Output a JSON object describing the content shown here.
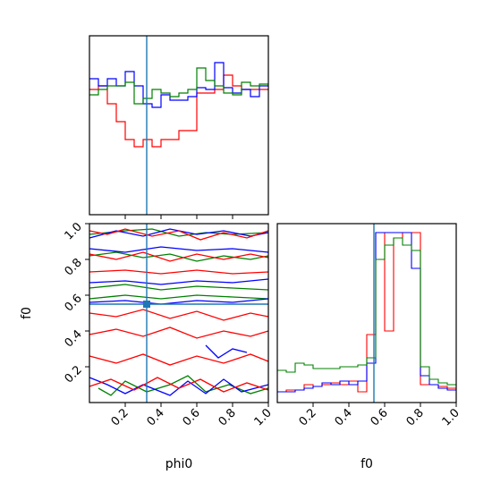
{
  "chart_data": [
    {
      "type": "histogram",
      "panel": "phi0-marginal",
      "xlim": [
        0,
        1
      ],
      "truth": 0.32,
      "truth_color": "#1f77b4",
      "bins": 20,
      "series": [
        {
          "color": "#ff0000",
          "values": [
            0.7,
            0.72,
            0.62,
            0.52,
            0.42,
            0.38,
            0.42,
            0.38,
            0.42,
            0.42,
            0.47,
            0.47,
            0.68,
            0.68,
            0.7,
            0.78,
            0.72,
            0.7,
            0.7,
            0.7
          ]
        },
        {
          "color": "#0000ff",
          "values": [
            0.76,
            0.72,
            0.76,
            0.72,
            0.8,
            0.72,
            0.62,
            0.6,
            0.67,
            0.64,
            0.64,
            0.66,
            0.71,
            0.7,
            0.85,
            0.71,
            0.68,
            0.7,
            0.66,
            0.72
          ]
        },
        {
          "color": "#008000",
          "values": [
            0.67,
            0.7,
            0.72,
            0.72,
            0.74,
            0.62,
            0.65,
            0.7,
            0.68,
            0.66,
            0.68,
            0.7,
            0.82,
            0.75,
            0.72,
            0.68,
            0.67,
            0.74,
            0.72,
            0.73
          ]
        }
      ]
    },
    {
      "type": "contour",
      "panel": "phi0-f0-joint",
      "xlabel": "phi0",
      "ylabel": "f0",
      "xlim": [
        0,
        1
      ],
      "ylim": [
        0,
        1
      ],
      "xticks": [
        "0.2",
        "0.4",
        "0.6",
        "0.8",
        "1.0"
      ],
      "yticks": [
        "0.2",
        "0.4",
        "0.6",
        "0.8",
        "1.0"
      ],
      "truth": {
        "x": 0.32,
        "y": 0.55
      },
      "truth_color": "#1f77b4",
      "series": [
        {
          "color": "#008000",
          "contours": [
            [
              [
                0.0,
                0.94
              ],
              [
                0.1,
                0.95
              ],
              [
                0.2,
                0.96
              ],
              [
                0.35,
                0.97
              ],
              [
                0.5,
                0.93
              ],
              [
                0.65,
                0.95
              ],
              [
                0.8,
                0.94
              ],
              [
                1.0,
                0.95
              ]
            ],
            [
              [
                0.0,
                0.82
              ],
              [
                0.15,
                0.84
              ],
              [
                0.3,
                0.81
              ],
              [
                0.45,
                0.83
              ],
              [
                0.6,
                0.79
              ],
              [
                0.75,
                0.82
              ],
              [
                0.9,
                0.8
              ],
              [
                1.0,
                0.82
              ]
            ],
            [
              [
                0.0,
                0.64
              ],
              [
                0.2,
                0.66
              ],
              [
                0.4,
                0.63
              ],
              [
                0.6,
                0.65
              ],
              [
                0.8,
                0.64
              ],
              [
                1.0,
                0.63
              ]
            ],
            [
              [
                0.0,
                0.58
              ],
              [
                0.2,
                0.6
              ],
              [
                0.4,
                0.58
              ],
              [
                0.6,
                0.6
              ],
              [
                0.8,
                0.59
              ],
              [
                1.0,
                0.58
              ]
            ],
            [
              [
                0.05,
                0.08
              ],
              [
                0.12,
                0.04
              ],
              [
                0.2,
                0.12
              ],
              [
                0.32,
                0.06
              ],
              [
                0.45,
                0.1
              ],
              [
                0.55,
                0.15
              ],
              [
                0.65,
                0.06
              ],
              [
                0.78,
                0.1
              ],
              [
                0.9,
                0.05
              ],
              [
                1.0,
                0.08
              ]
            ]
          ]
        },
        {
          "color": "#0000ff",
          "contours": [
            [
              [
                0.0,
                0.92
              ],
              [
                0.15,
                0.96
              ],
              [
                0.3,
                0.93
              ],
              [
                0.45,
                0.97
              ],
              [
                0.6,
                0.94
              ],
              [
                0.75,
                0.96
              ],
              [
                0.9,
                0.93
              ],
              [
                1.0,
                0.95
              ]
            ],
            [
              [
                0.0,
                0.86
              ],
              [
                0.2,
                0.84
              ],
              [
                0.4,
                0.87
              ],
              [
                0.6,
                0.85
              ],
              [
                0.8,
                0.86
              ],
              [
                1.0,
                0.84
              ]
            ],
            [
              [
                0.0,
                0.67
              ],
              [
                0.2,
                0.68
              ],
              [
                0.4,
                0.66
              ],
              [
                0.6,
                0.68
              ],
              [
                0.8,
                0.67
              ],
              [
                1.0,
                0.69
              ]
            ],
            [
              [
                0.0,
                0.56
              ],
              [
                0.2,
                0.57
              ],
              [
                0.4,
                0.55
              ],
              [
                0.6,
                0.57
              ],
              [
                0.8,
                0.56
              ],
              [
                1.0,
                0.58
              ]
            ],
            [
              [
                0.0,
                0.14
              ],
              [
                0.1,
                0.1
              ],
              [
                0.2,
                0.05
              ],
              [
                0.3,
                0.1
              ],
              [
                0.45,
                0.04
              ],
              [
                0.55,
                0.12
              ],
              [
                0.65,
                0.05
              ],
              [
                0.75,
                0.13
              ],
              [
                0.85,
                0.06
              ],
              [
                1.0,
                0.1
              ]
            ],
            [
              [
                0.65,
                0.32
              ],
              [
                0.72,
                0.25
              ],
              [
                0.8,
                0.3
              ],
              [
                0.88,
                0.28
              ]
            ]
          ]
        },
        {
          "color": "#ff0000",
          "contours": [
            [
              [
                0.0,
                0.96
              ],
              [
                0.1,
                0.94
              ],
              [
                0.2,
                0.97
              ],
              [
                0.35,
                0.93
              ],
              [
                0.5,
                0.96
              ],
              [
                0.62,
                0.91
              ],
              [
                0.75,
                0.95
              ],
              [
                0.88,
                0.92
              ],
              [
                1.0,
                0.96
              ]
            ],
            [
              [
                0.0,
                0.83
              ],
              [
                0.15,
                0.8
              ],
              [
                0.3,
                0.84
              ],
              [
                0.45,
                0.79
              ],
              [
                0.6,
                0.83
              ],
              [
                0.75,
                0.8
              ],
              [
                0.9,
                0.83
              ],
              [
                1.0,
                0.81
              ]
            ],
            [
              [
                0.0,
                0.73
              ],
              [
                0.2,
                0.74
              ],
              [
                0.4,
                0.72
              ],
              [
                0.6,
                0.74
              ],
              [
                0.8,
                0.72
              ],
              [
                1.0,
                0.73
              ]
            ],
            [
              [
                0.0,
                0.5
              ],
              [
                0.15,
                0.48
              ],
              [
                0.3,
                0.52
              ],
              [
                0.45,
                0.47
              ],
              [
                0.6,
                0.51
              ],
              [
                0.75,
                0.46
              ],
              [
                0.9,
                0.5
              ],
              [
                1.0,
                0.48
              ]
            ],
            [
              [
                0.0,
                0.38
              ],
              [
                0.15,
                0.41
              ],
              [
                0.3,
                0.37
              ],
              [
                0.45,
                0.42
              ],
              [
                0.6,
                0.36
              ],
              [
                0.75,
                0.4
              ],
              [
                0.9,
                0.37
              ],
              [
                1.0,
                0.4
              ]
            ],
            [
              [
                0.0,
                0.26
              ],
              [
                0.15,
                0.22
              ],
              [
                0.3,
                0.27
              ],
              [
                0.45,
                0.21
              ],
              [
                0.6,
                0.26
              ],
              [
                0.75,
                0.22
              ],
              [
                0.9,
                0.27
              ],
              [
                1.0,
                0.23
              ]
            ],
            [
              [
                0.0,
                0.09
              ],
              [
                0.12,
                0.13
              ],
              [
                0.25,
                0.07
              ],
              [
                0.38,
                0.14
              ],
              [
                0.5,
                0.08
              ],
              [
                0.62,
                0.13
              ],
              [
                0.75,
                0.06
              ],
              [
                0.88,
                0.11
              ],
              [
                1.0,
                0.07
              ]
            ]
          ]
        }
      ]
    },
    {
      "type": "histogram",
      "panel": "f0-marginal",
      "xlabel": "f0",
      "xlim": [
        0,
        1
      ],
      "xticks": [
        "0.2",
        "0.4",
        "0.6",
        "0.8",
        "1.0"
      ],
      "truth": 0.54,
      "truth_color": "#1f77b4",
      "bins": 20,
      "series": [
        {
          "color": "#ff0000",
          "values": [
            0.06,
            0.07,
            0.07,
            0.1,
            0.09,
            0.1,
            0.11,
            0.1,
            0.12,
            0.06,
            0.38,
            0.95,
            0.4,
            0.92,
            0.95,
            0.95,
            0.1,
            0.1,
            0.09,
            0.08
          ]
        },
        {
          "color": "#0000ff",
          "values": [
            0.06,
            0.06,
            0.07,
            0.08,
            0.09,
            0.11,
            0.1,
            0.12,
            0.1,
            0.12,
            0.22,
            0.95,
            0.95,
            0.95,
            0.95,
            0.75,
            0.15,
            0.1,
            0.08,
            0.07
          ]
        },
        {
          "color": "#008000",
          "values": [
            0.18,
            0.17,
            0.22,
            0.21,
            0.19,
            0.19,
            0.19,
            0.2,
            0.2,
            0.21,
            0.25,
            0.8,
            0.88,
            0.92,
            0.88,
            0.85,
            0.2,
            0.13,
            0.11,
            0.1
          ]
        }
      ]
    }
  ]
}
